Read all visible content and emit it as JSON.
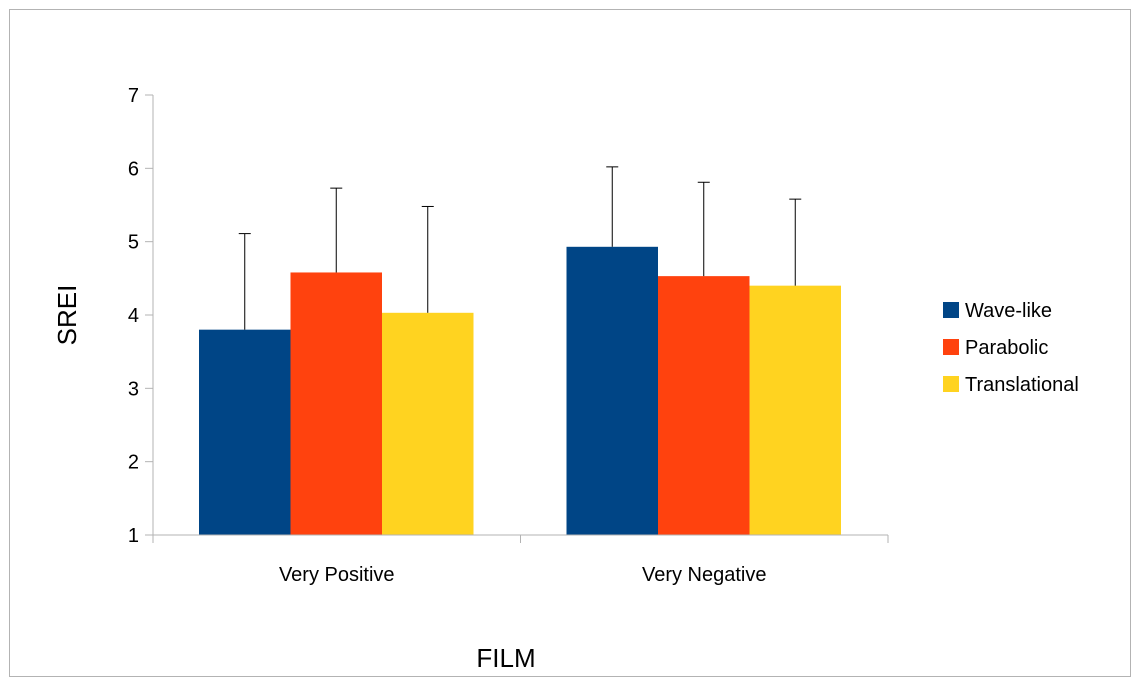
{
  "chart_data": {
    "type": "bar",
    "title": "",
    "xlabel": "FILM",
    "ylabel": "SREI",
    "ylim": [
      1,
      7
    ],
    "yticks": [
      "1",
      "2",
      "3",
      "4",
      "5",
      "6",
      "7"
    ],
    "categories": [
      "Very Positive",
      "Very Negative"
    ],
    "series": [
      {
        "name": "Wave-like",
        "values": [
          3.8,
          4.93
        ],
        "error": [
          1.31,
          1.09
        ],
        "color": "#004586"
      },
      {
        "name": "Parabolic",
        "values": [
          4.58,
          4.53
        ],
        "error": [
          1.15,
          1.28
        ],
        "color": "#ff420e"
      },
      {
        "name": "Translational",
        "values": [
          4.03,
          4.4
        ],
        "error": [
          1.45,
          1.18
        ],
        "color": "#ffd320"
      }
    ],
    "grid": false,
    "legend_position": "right",
    "error_bars": "upper"
  }
}
